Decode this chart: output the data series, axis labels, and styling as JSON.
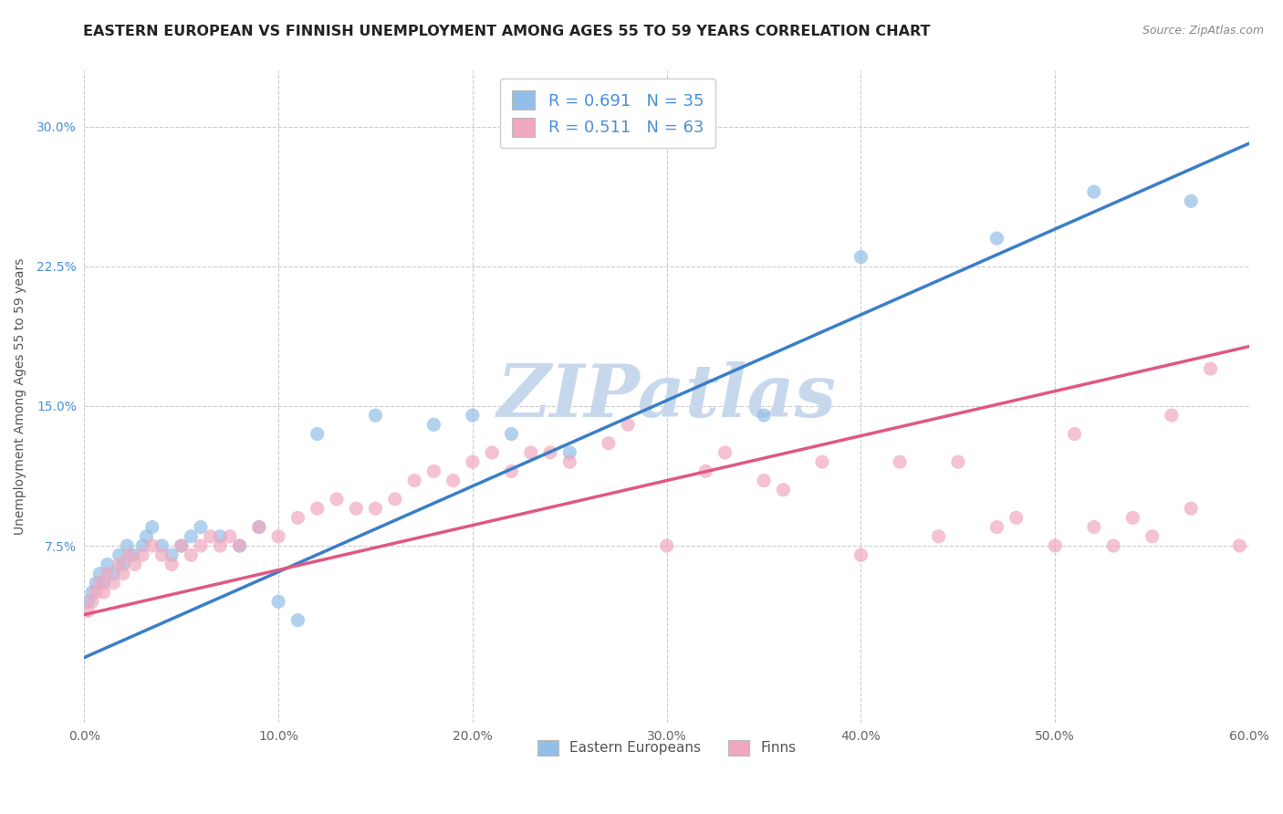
{
  "title": "EASTERN EUROPEAN VS FINNISH UNEMPLOYMENT AMONG AGES 55 TO 59 YEARS CORRELATION CHART",
  "source": "Source: ZipAtlas.com",
  "xlabel": "",
  "ylabel": "Unemployment Among Ages 55 to 59 years",
  "xticklabels": [
    "0.0%",
    "10.0%",
    "20.0%",
    "30.0%",
    "40.0%",
    "50.0%",
    "60.0%"
  ],
  "xticks": [
    0,
    10,
    20,
    30,
    40,
    50,
    60
  ],
  "yticklabels": [
    "7.5%",
    "15.0%",
    "22.5%",
    "30.0%"
  ],
  "yticks": [
    7.5,
    15.0,
    22.5,
    30.0
  ],
  "xlim": [
    0,
    60
  ],
  "ylim": [
    -2,
    33
  ],
  "legend_labels": [
    "Eastern Europeans",
    "Finns"
  ],
  "R_eastern": 0.691,
  "N_eastern": 35,
  "R_finns": 0.511,
  "N_finns": 63,
  "color_eastern": "#92BEE8",
  "color_finns": "#F0A8BE",
  "line_color_eastern": "#3A7EC8",
  "line_color_finns": "#E05880",
  "background_color": "#FFFFFF",
  "grid_color": "#CCCCCC",
  "watermark_text": "ZIPatlas",
  "watermark_color": "#C8D8EC",
  "title_fontsize": 11.5,
  "axis_label_fontsize": 10,
  "tick_fontsize": 10,
  "line_eastern_slope": 0.46,
  "line_eastern_intercept": 1.5,
  "line_finns_slope": 0.24,
  "line_finns_intercept": 3.8,
  "eastern_scatter_x": [
    0.2,
    0.4,
    0.6,
    0.8,
    1.0,
    1.2,
    1.5,
    1.8,
    2.0,
    2.2,
    2.5,
    3.0,
    3.2,
    3.5,
    4.0,
    4.5,
    5.0,
    5.5,
    6.0,
    7.0,
    8.0,
    9.0,
    10.0,
    11.0,
    12.0,
    15.0,
    18.0,
    20.0,
    22.0,
    25.0,
    35.0,
    40.0,
    47.0,
    52.0,
    57.0
  ],
  "eastern_scatter_y": [
    4.5,
    5.0,
    5.5,
    6.0,
    5.5,
    6.5,
    6.0,
    7.0,
    6.5,
    7.5,
    7.0,
    7.5,
    8.0,
    8.5,
    7.5,
    7.0,
    7.5,
    8.0,
    8.5,
    8.0,
    7.5,
    8.5,
    4.5,
    3.5,
    13.5,
    14.5,
    14.0,
    14.5,
    13.5,
    12.5,
    14.5,
    23.0,
    24.0,
    26.5,
    26.0
  ],
  "finns_scatter_x": [
    0.2,
    0.4,
    0.6,
    0.8,
    1.0,
    1.2,
    1.5,
    1.8,
    2.0,
    2.3,
    2.6,
    3.0,
    3.5,
    4.0,
    4.5,
    5.0,
    5.5,
    6.0,
    6.5,
    7.0,
    7.5,
    8.0,
    9.0,
    10.0,
    11.0,
    12.0,
    13.0,
    14.0,
    15.0,
    16.0,
    17.0,
    18.0,
    19.0,
    20.0,
    21.0,
    22.0,
    23.0,
    24.0,
    25.0,
    27.0,
    28.0,
    30.0,
    32.0,
    33.0,
    35.0,
    36.0,
    38.0,
    40.0,
    42.0,
    44.0,
    45.0,
    47.0,
    48.0,
    50.0,
    51.0,
    52.0,
    53.0,
    54.0,
    55.0,
    56.0,
    57.0,
    58.0,
    59.5
  ],
  "finns_scatter_y": [
    4.0,
    4.5,
    5.0,
    5.5,
    5.0,
    6.0,
    5.5,
    6.5,
    6.0,
    7.0,
    6.5,
    7.0,
    7.5,
    7.0,
    6.5,
    7.5,
    7.0,
    7.5,
    8.0,
    7.5,
    8.0,
    7.5,
    8.5,
    8.0,
    9.0,
    9.5,
    10.0,
    9.5,
    9.5,
    10.0,
    11.0,
    11.5,
    11.0,
    12.0,
    12.5,
    11.5,
    12.5,
    12.5,
    12.0,
    13.0,
    14.0,
    7.5,
    11.5,
    12.5,
    11.0,
    10.5,
    12.0,
    7.0,
    12.0,
    8.0,
    12.0,
    8.5,
    9.0,
    7.5,
    13.5,
    8.5,
    7.5,
    9.0,
    8.0,
    14.5,
    9.5,
    17.0,
    7.5
  ]
}
